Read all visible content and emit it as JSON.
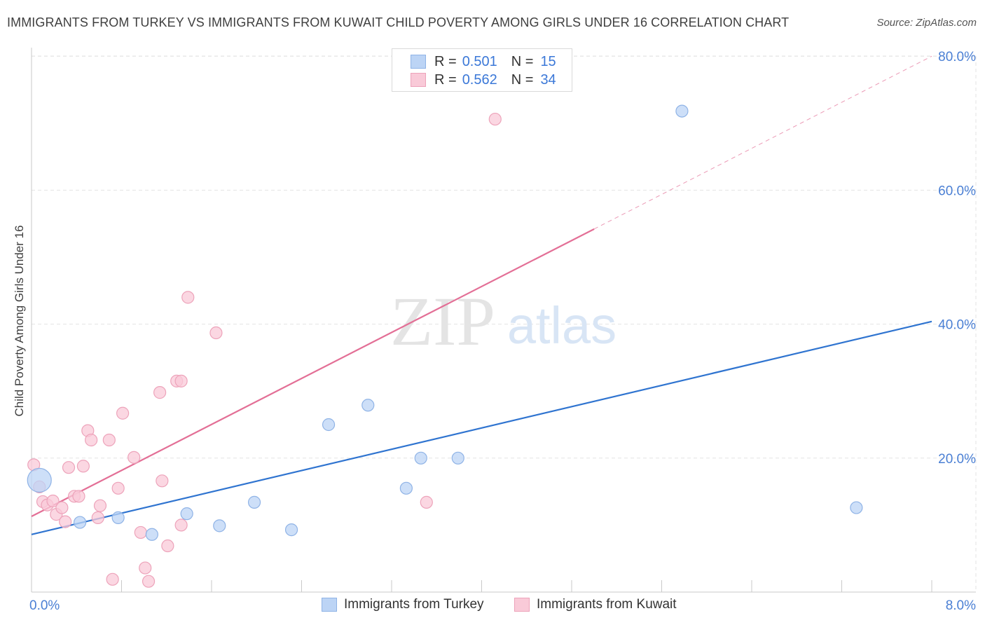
{
  "header": {
    "title": "IMMIGRANTS FROM TURKEY VS IMMIGRANTS FROM KUWAIT CHILD POVERTY AMONG GIRLS UNDER 16 CORRELATION CHART",
    "source": "Source: ZipAtlas.com"
  },
  "watermark": {
    "zip": "ZIP",
    "atlas": "atlas"
  },
  "legend": {
    "turkey": {
      "r_label": "R =",
      "r_value": "0.501",
      "n_label": "N =",
      "n_value": "15"
    },
    "kuwait": {
      "r_label": "R =",
      "r_value": "0.562",
      "n_label": "N =",
      "n_value": "34"
    }
  },
  "colors": {
    "turkey_fill": "#bcd4f5",
    "turkey_stroke": "#8fb3e6",
    "turkey_line": "#2f74d0",
    "kuwait_fill": "#f9cad8",
    "kuwait_stroke": "#eda3ba",
    "kuwait_line": "#e36f96",
    "tick_text": "#4a7fd4",
    "grid": "#e3e3e3"
  },
  "chart_data": {
    "type": "scatter",
    "title": "IMMIGRANTS FROM TURKEY VS IMMIGRANTS FROM KUWAIT CHILD POVERTY AMONG GIRLS UNDER 16 CORRELATION CHART",
    "xlabel": "",
    "ylabel": "Child Poverty Among Girls Under 16",
    "xlim": [
      0,
      8
    ],
    "ylim": [
      0,
      80
    ],
    "x_tick_labels": [
      {
        "value": 0,
        "label": "0.0%"
      },
      {
        "value": 8,
        "label": "8.0%"
      }
    ],
    "x_minor_ticks": [
      0,
      0.8,
      1.6,
      2.4,
      3.2,
      4.0,
      4.8,
      5.6,
      6.4,
      7.2,
      8.0
    ],
    "y_ticks": [
      {
        "value": 20,
        "label": "20.0%"
      },
      {
        "value": 40,
        "label": "40.0%"
      },
      {
        "value": 60,
        "label": "60.0%"
      },
      {
        "value": 80,
        "label": "80.0%"
      }
    ],
    "grid": true,
    "legend_position": "top-center",
    "series": [
      {
        "name": "Immigrants from Turkey",
        "color": "#2f74d0",
        "r": 0.501,
        "n": 15,
        "points": [
          {
            "x": 0.07,
            "y": 16.7,
            "big": true
          },
          {
            "x": 0.43,
            "y": 10.4
          },
          {
            "x": 0.77,
            "y": 11.1
          },
          {
            "x": 1.07,
            "y": 8.6
          },
          {
            "x": 1.38,
            "y": 11.7
          },
          {
            "x": 1.67,
            "y": 9.9
          },
          {
            "x": 1.98,
            "y": 13.4
          },
          {
            "x": 2.31,
            "y": 9.3
          },
          {
            "x": 2.64,
            "y": 25.0
          },
          {
            "x": 2.99,
            "y": 27.9
          },
          {
            "x": 3.33,
            "y": 15.5
          },
          {
            "x": 3.46,
            "y": 20.0
          },
          {
            "x": 3.79,
            "y": 20.0
          },
          {
            "x": 5.78,
            "y": 71.8
          },
          {
            "x": 7.33,
            "y": 12.6
          }
        ],
        "trend": {
          "x0": 0,
          "y0": 8.6,
          "x1": 8,
          "y1": 40.4,
          "dashed_to": null
        }
      },
      {
        "name": "Immigrants from Kuwait",
        "color": "#e36f96",
        "r": 0.562,
        "n": 34,
        "points": [
          {
            "x": 0.02,
            "y": 19.0
          },
          {
            "x": 0.07,
            "y": 15.7
          },
          {
            "x": 0.1,
            "y": 13.5
          },
          {
            "x": 0.14,
            "y": 13.0
          },
          {
            "x": 0.19,
            "y": 13.6
          },
          {
            "x": 0.22,
            "y": 11.6
          },
          {
            "x": 0.27,
            "y": 12.6
          },
          {
            "x": 0.3,
            "y": 10.5
          },
          {
            "x": 0.33,
            "y": 18.6
          },
          {
            "x": 0.38,
            "y": 14.3
          },
          {
            "x": 0.42,
            "y": 14.3
          },
          {
            "x": 0.46,
            "y": 18.8
          },
          {
            "x": 0.5,
            "y": 24.1
          },
          {
            "x": 0.53,
            "y": 22.7
          },
          {
            "x": 0.59,
            "y": 11.1
          },
          {
            "x": 0.61,
            "y": 12.9
          },
          {
            "x": 0.69,
            "y": 22.7
          },
          {
            "x": 0.72,
            "y": 1.9
          },
          {
            "x": 0.77,
            "y": 15.5
          },
          {
            "x": 0.81,
            "y": 26.7
          },
          {
            "x": 0.91,
            "y": 20.1
          },
          {
            "x": 0.97,
            "y": 8.9
          },
          {
            "x": 1.01,
            "y": 3.6
          },
          {
            "x": 1.04,
            "y": 1.6
          },
          {
            "x": 1.14,
            "y": 29.8
          },
          {
            "x": 1.16,
            "y": 16.6
          },
          {
            "x": 1.21,
            "y": 6.9
          },
          {
            "x": 1.33,
            "y": 10.0
          },
          {
            "x": 1.29,
            "y": 31.5
          },
          {
            "x": 1.33,
            "y": 31.5
          },
          {
            "x": 1.39,
            "y": 44.0
          },
          {
            "x": 1.64,
            "y": 38.7
          },
          {
            "x": 3.51,
            "y": 13.4
          },
          {
            "x": 4.12,
            "y": 70.6
          }
        ],
        "trend": {
          "x0": 0,
          "y0": 11.3,
          "x1": 5.0,
          "y1": 54.2,
          "dashed_to": {
            "x": 8,
            "y": 80.0
          }
        }
      }
    ]
  },
  "bottom_legend": {
    "turkey_label": "Immigrants from Turkey",
    "kuwait_label": "Immigrants from Kuwait"
  }
}
